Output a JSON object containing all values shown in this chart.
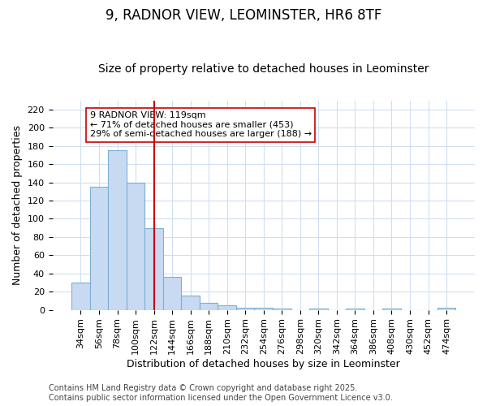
{
  "title_line1": "9, RADNOR VIEW, LEOMINSTER, HR6 8TF",
  "title_line2": "Size of property relative to detached houses in Leominster",
  "xlabel": "Distribution of detached houses by size in Leominster",
  "ylabel": "Number of detached properties",
  "bar_labels": [
    "34sqm",
    "56sqm",
    "78sqm",
    "100sqm",
    "122sqm",
    "144sqm",
    "166sqm",
    "188sqm",
    "210sqm",
    "232sqm",
    "254sqm",
    "276sqm",
    "298sqm",
    "320sqm",
    "342sqm",
    "364sqm",
    "386sqm",
    "408sqm",
    "430sqm",
    "452sqm",
    "474sqm"
  ],
  "bar_values": [
    30,
    135,
    175,
    140,
    90,
    36,
    16,
    8,
    5,
    2,
    2,
    1,
    0,
    1,
    0,
    1,
    0,
    1,
    0,
    0,
    2
  ],
  "bar_color": "#c8daf2",
  "bar_edge_color": "#7bafd4",
  "background_color": "#ffffff",
  "grid_color": "#d0dff0",
  "red_line_x": 4.0,
  "annotation_text_line1": "9 RADNOR VIEW: 119sqm",
  "annotation_text_line2": "← 71% of detached houses are smaller (453)",
  "annotation_text_line3": "29% of semi-detached houses are larger (188) →",
  "ylim": [
    0,
    230
  ],
  "yticks": [
    0,
    20,
    40,
    60,
    80,
    100,
    120,
    140,
    160,
    180,
    200,
    220
  ],
  "footnote_line1": "Contains HM Land Registry data © Crown copyright and database right 2025.",
  "footnote_line2": "Contains public sector information licensed under the Open Government Licence v3.0.",
  "title_fontsize": 12,
  "subtitle_fontsize": 10,
  "axis_label_fontsize": 9,
  "tick_fontsize": 8,
  "annotation_fontsize": 8,
  "footnote_fontsize": 7
}
